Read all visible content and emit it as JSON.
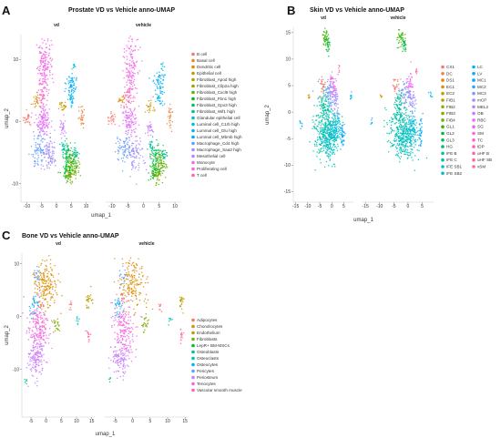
{
  "chart_data": [
    {
      "panel": "A",
      "type": "scatter",
      "title": "Prostate VD vs Vehicle anno-UMAP",
      "facets": [
        "vd",
        "vehicle"
      ],
      "xlabel": "umap_1",
      "ylabel": "umap_2",
      "x_ticks": [
        -10,
        -5,
        0,
        5,
        10
      ],
      "y_ticks": [
        -10,
        0,
        10
      ],
      "xlim": [
        -12,
        12
      ],
      "ylim": [
        -13,
        14
      ],
      "legend_position": "right",
      "categories": [
        {
          "name": "B cell",
          "color": "#F8766D"
        },
        {
          "name": "Basal cell",
          "color": "#EC8239"
        },
        {
          "name": "Dendritic cell",
          "color": "#DB8E00"
        },
        {
          "name": "Epithelial cell",
          "color": "#C79800"
        },
        {
          "name": "Fibroblast_Apod high",
          "color": "#AEA200"
        },
        {
          "name": "Fibroblast_Cilp2a high",
          "color": "#8FAA00"
        },
        {
          "name": "Fibroblast_Cxcl9 high",
          "color": "#64B200"
        },
        {
          "name": "Fibroblast_Fbn1 high",
          "color": "#00B81B"
        },
        {
          "name": "Fibroblast_Gpx3 high",
          "color": "#00BD5C"
        },
        {
          "name": "Fibroblast_Wif1 high",
          "color": "#00C08D"
        },
        {
          "name": "Glandular epithelial cell",
          "color": "#00C1B2"
        },
        {
          "name": "Luminal cell_C1rb high",
          "color": "#00BFD4"
        },
        {
          "name": "Luminal cell_Glu high",
          "color": "#00B8EF"
        },
        {
          "name": "Luminal cell_Mbmb high",
          "color": "#00ACFC"
        },
        {
          "name": "Macrophage_Cd4 high",
          "color": "#619CFF"
        },
        {
          "name": "Macrophage_Saa3 high",
          "color": "#9F8CFF"
        },
        {
          "name": "Mesothelial cell",
          "color": "#C77CFF"
        },
        {
          "name": "Monocyte",
          "color": "#E36EF6"
        },
        {
          "name": "Proliferating cell",
          "color": "#F564E3"
        },
        {
          "name": "T cell",
          "color": "#FF64B0"
        }
      ],
      "clusters": [
        {
          "cat": 18,
          "x": -4.0,
          "y": 8.5,
          "sx": 1.2,
          "sy": 2.4,
          "n": 170
        },
        {
          "cat": 19,
          "x": -5.0,
          "y": 4.0,
          "sx": 0.8,
          "sy": 1.0,
          "n": 40
        },
        {
          "cat": 2,
          "x": -7.0,
          "y": 3.5,
          "sx": 0.6,
          "sy": 0.5,
          "n": 20
        },
        {
          "cat": 13,
          "x": 5.0,
          "y": 6.0,
          "sx": 0.9,
          "sy": 0.9,
          "n": 60
        },
        {
          "cat": 12,
          "x": 5.0,
          "y": 3.5,
          "sx": 0.6,
          "sy": 0.6,
          "n": 30
        },
        {
          "cat": 3,
          "x": 2.0,
          "y": 2.5,
          "sx": 0.7,
          "sy": 0.5,
          "n": 25
        },
        {
          "cat": 11,
          "x": 6.0,
          "y": 9.0,
          "sx": 0.3,
          "sy": 0.4,
          "n": 10
        },
        {
          "cat": 1,
          "x": 8.5,
          "y": 1.0,
          "sx": 0.4,
          "sy": 1.0,
          "n": 30
        },
        {
          "cat": 0,
          "x": -10.0,
          "y": 0.5,
          "sx": 0.7,
          "sy": 0.6,
          "n": 25
        },
        {
          "cat": 17,
          "x": -4.5,
          "y": 0.0,
          "sx": 1.1,
          "sy": 1.3,
          "n": 120
        },
        {
          "cat": 16,
          "x": 2.0,
          "y": -1.0,
          "sx": 0.5,
          "sy": 0.7,
          "n": 30
        },
        {
          "cat": 14,
          "x": -6.0,
          "y": -4.5,
          "sx": 1.2,
          "sy": 1.2,
          "n": 80
        },
        {
          "cat": 15,
          "x": -2.5,
          "y": -5.5,
          "sx": 1.3,
          "sy": 1.3,
          "n": 90
        },
        {
          "cat": 8,
          "x": 4.0,
          "y": -5.0,
          "sx": 1.0,
          "sy": 1.0,
          "n": 70
        },
        {
          "cat": 6,
          "x": 5.5,
          "y": -7.0,
          "sx": 1.0,
          "sy": 1.0,
          "n": 90
        },
        {
          "cat": 7,
          "x": 3.5,
          "y": -8.0,
          "sx": 1.0,
          "sy": 0.8,
          "n": 60
        },
        {
          "cat": 9,
          "x": 6.5,
          "y": -5.5,
          "sx": 0.6,
          "sy": 0.7,
          "n": 30
        },
        {
          "cat": 5,
          "x": 4.5,
          "y": -9.0,
          "sx": 0.6,
          "sy": 0.6,
          "n": 30
        },
        {
          "cat": 10,
          "x": 2.5,
          "y": -4.0,
          "sx": 0.4,
          "sy": 0.5,
          "n": 15
        }
      ]
    },
    {
      "panel": "B",
      "type": "scatter",
      "title": "Skin VD vs Vehicle anno-UMAP",
      "facets": [
        "vd",
        "vehicle"
      ],
      "xlabel": "umap_1",
      "ylabel": "umap_2",
      "x_ticks": [
        -15,
        -10,
        -5,
        0,
        5
      ],
      "y_ticks": [
        -15,
        -10,
        -5,
        0,
        5,
        10,
        15
      ],
      "xlim": [
        -16,
        9
      ],
      "ylim": [
        -17,
        16
      ],
      "legend_position": "right",
      "categories": [
        {
          "name": "CX1",
          "color": "#F8766D"
        },
        {
          "name": "DC",
          "color": "#F07F4F"
        },
        {
          "name": "DS1",
          "color": "#E58700"
        },
        {
          "name": "EC1",
          "color": "#D89000"
        },
        {
          "name": "EC2",
          "color": "#C99800"
        },
        {
          "name": "FIB1",
          "color": "#B79F00"
        },
        {
          "name": "FIB2",
          "color": "#A3A500"
        },
        {
          "name": "FIB3",
          "color": "#8BAB00"
        },
        {
          "name": "FIB4",
          "color": "#6BB100"
        },
        {
          "name": "GL1",
          "color": "#39B600"
        },
        {
          "name": "GL2",
          "color": "#00BA38"
        },
        {
          "name": "GL3",
          "color": "#00BD5F"
        },
        {
          "name": "HG",
          "color": "#00BF7D"
        },
        {
          "name": "IFE B",
          "color": "#00C097"
        },
        {
          "name": "IFE C",
          "color": "#00C1AE"
        },
        {
          "name": "IFE SB1",
          "color": "#00BFC4"
        },
        {
          "name": "IFE SB2",
          "color": "#00BCD8"
        },
        {
          "name": "LC",
          "color": "#00B6EB"
        },
        {
          "name": "LV",
          "color": "#00B0F6"
        },
        {
          "name": "MC1",
          "color": "#00A8FF"
        },
        {
          "name": "MC2",
          "color": "#35A2FF"
        },
        {
          "name": "MC3",
          "color": "#7E96FF"
        },
        {
          "name": "mCP",
          "color": "#9F8CFF"
        },
        {
          "name": "MEL2",
          "color": "#B983FF"
        },
        {
          "name": "OB",
          "color": "#CF78FF"
        },
        {
          "name": "RBC",
          "color": "#DF70F8"
        },
        {
          "name": "SG",
          "color": "#EB69F0"
        },
        {
          "name": "SM",
          "color": "#F564E3"
        },
        {
          "name": "TC",
          "color": "#FC61D5"
        },
        {
          "name": "tDP",
          "color": "#FF61C3"
        },
        {
          "name": "uHF B",
          "color": "#FF64B0"
        },
        {
          "name": "uHF SB",
          "color": "#FF689F"
        },
        {
          "name": "vSM",
          "color": "#FD6F87"
        }
      ],
      "clusters": [
        {
          "cat": 14,
          "x": -2.5,
          "y": -3.5,
          "sx": 2.4,
          "sy": 2.6,
          "n": 300
        },
        {
          "cat": 15,
          "x": -1.0,
          "y": -5.5,
          "sx": 2.0,
          "sy": 1.8,
          "n": 160
        },
        {
          "cat": 16,
          "x": 1.5,
          "y": -3.0,
          "sx": 1.2,
          "sy": 1.6,
          "n": 90
        },
        {
          "cat": 13,
          "x": -3.0,
          "y": 1.5,
          "sx": 1.0,
          "sy": 1.5,
          "n": 70
        },
        {
          "cat": 21,
          "x": -1.0,
          "y": 3.5,
          "sx": 1.0,
          "sy": 1.2,
          "n": 60
        },
        {
          "cat": 26,
          "x": 0.5,
          "y": 5.0,
          "sx": 0.7,
          "sy": 1.5,
          "n": 50
        },
        {
          "cat": 0,
          "x": -4.0,
          "y": 5.0,
          "sx": 0.6,
          "sy": 0.8,
          "n": 25
        },
        {
          "cat": 22,
          "x": 1.5,
          "y": 2.0,
          "sx": 0.6,
          "sy": 1.4,
          "n": 40
        },
        {
          "cat": 9,
          "x": -2.5,
          "y": 14.0,
          "sx": 0.7,
          "sy": 0.9,
          "n": 45
        },
        {
          "cat": 10,
          "x": -1.5,
          "y": 12.5,
          "sx": 0.5,
          "sy": 0.7,
          "n": 25
        },
        {
          "cat": 19,
          "x": 4.5,
          "y": -4.0,
          "sx": 0.4,
          "sy": 1.2,
          "n": 40
        },
        {
          "cat": 17,
          "x": 8.0,
          "y": 3.0,
          "sx": 0.3,
          "sy": 0.4,
          "n": 8
        },
        {
          "cat": 18,
          "x": -13.0,
          "y": -2.0,
          "sx": 0.3,
          "sy": 0.5,
          "n": 8
        },
        {
          "cat": 3,
          "x": -9.5,
          "y": 3.0,
          "sx": 0.3,
          "sy": 0.3,
          "n": 6
        },
        {
          "cat": 31,
          "x": 3.0,
          "y": 8.0,
          "sx": 0.3,
          "sy": 0.5,
          "n": 8
        }
      ]
    },
    {
      "panel": "C",
      "type": "scatter",
      "title": "Bone VD vs Vehicle anno-UMAP",
      "facets": [
        "vd",
        "vehicle"
      ],
      "xlabel": "umap_1",
      "ylabel": "umap_2",
      "x_ticks": [
        -5,
        0,
        5,
        10,
        15
      ],
      "y_ticks": [
        -10,
        0,
        10
      ],
      "xlim": [
        -8,
        16
      ],
      "ylim": [
        -19,
        12
      ],
      "legend_position": "right",
      "categories": [
        {
          "name": "Adipocytes",
          "color": "#F8766D"
        },
        {
          "name": "Chondrocytes",
          "color": "#DE8C00"
        },
        {
          "name": "Endothelium",
          "color": "#B79F00"
        },
        {
          "name": "Fibroblasts",
          "color": "#7CAE00"
        },
        {
          "name": "LepR+ BM-MSCs",
          "color": "#00BA38"
        },
        {
          "name": "Osteoblasts",
          "color": "#00C08B"
        },
        {
          "name": "Osteoclasts",
          "color": "#00BFC4"
        },
        {
          "name": "Osteocytes",
          "color": "#00B4F0"
        },
        {
          "name": "Pericytes",
          "color": "#619CFF"
        },
        {
          "name": "Periosteum",
          "color": "#C77CFF"
        },
        {
          "name": "Tenocytes",
          "color": "#F564E3"
        },
        {
          "name": "Vascular smooth muscle",
          "color": "#FF64B0"
        }
      ],
      "clusters": [
        {
          "cat": 1,
          "x": 0.0,
          "y": 6.0,
          "sx": 2.0,
          "sy": 2.6,
          "n": 200
        },
        {
          "cat": 10,
          "x": -2.5,
          "y": -2.0,
          "sx": 1.6,
          "sy": 2.8,
          "n": 200
        },
        {
          "cat": 9,
          "x": -3.5,
          "y": -8.0,
          "sx": 1.3,
          "sy": 1.8,
          "n": 130
        },
        {
          "cat": 7,
          "x": -4.0,
          "y": 2.0,
          "sx": 0.7,
          "sy": 1.0,
          "n": 30
        },
        {
          "cat": 8,
          "x": -3.0,
          "y": 7.5,
          "sx": 0.6,
          "sy": 0.8,
          "n": 20
        },
        {
          "cat": 3,
          "x": 3.5,
          "y": -1.5,
          "sx": 0.6,
          "sy": 0.8,
          "n": 25
        },
        {
          "cat": 2,
          "x": 14.0,
          "y": 3.0,
          "sx": 0.5,
          "sy": 0.9,
          "n": 25
        },
        {
          "cat": 0,
          "x": 8.0,
          "y": 2.0,
          "sx": 0.3,
          "sy": 0.6,
          "n": 10
        },
        {
          "cat": 11,
          "x": 14.0,
          "y": -3.5,
          "sx": 0.4,
          "sy": 0.6,
          "n": 15
        },
        {
          "cat": 6,
          "x": 10.5,
          "y": -1.0,
          "sx": 0.3,
          "sy": 0.5,
          "n": 8
        },
        {
          "cat": 5,
          "x": -6.5,
          "y": -12.0,
          "sx": 0.3,
          "sy": 0.4,
          "n": 6
        }
      ]
    }
  ]
}
